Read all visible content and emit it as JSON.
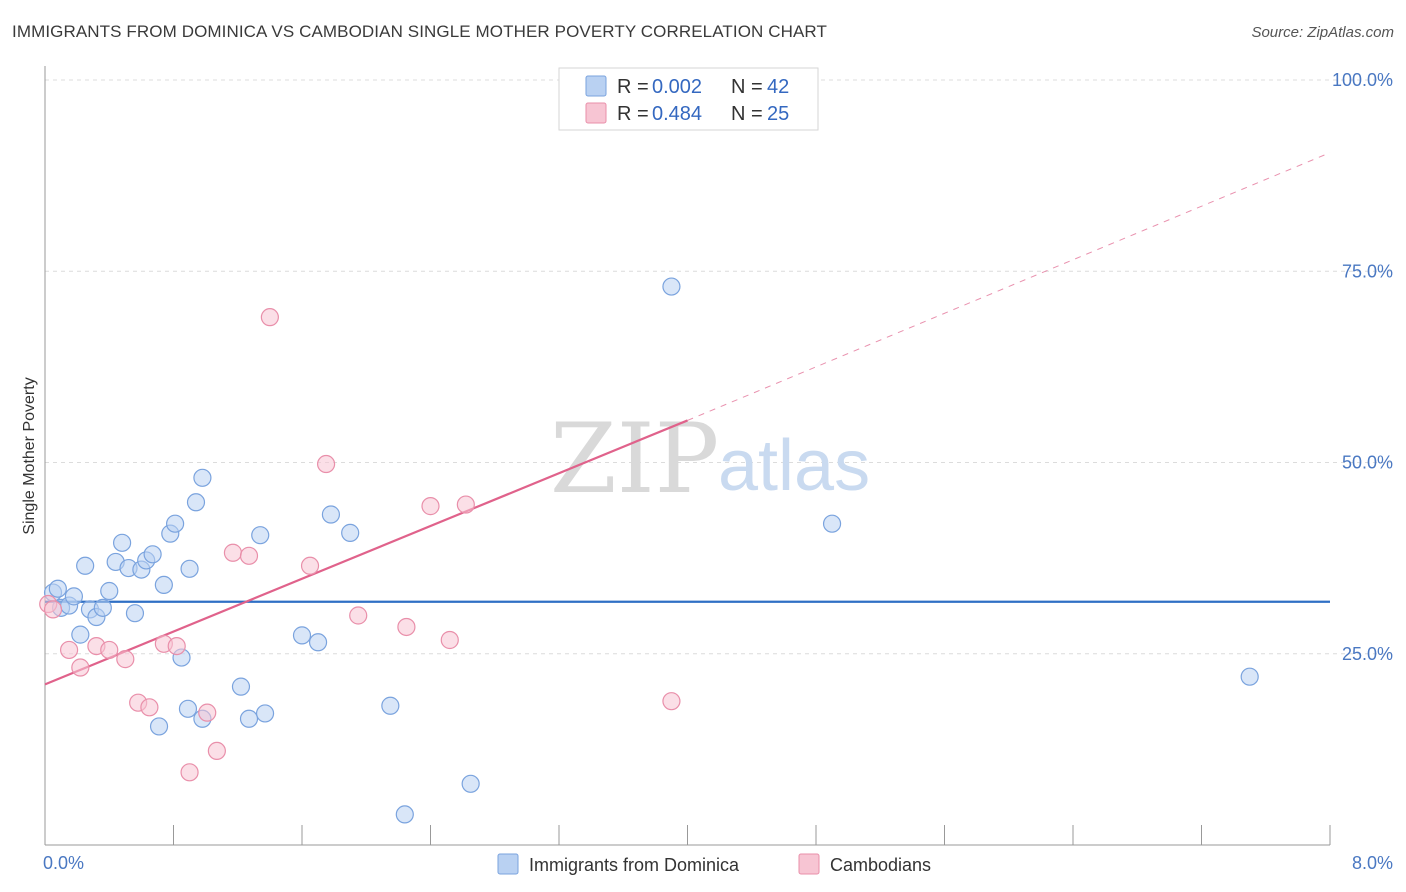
{
  "header": {
    "title": "IMMIGRANTS FROM DOMINICA VS CAMBODIAN SINGLE MOTHER POVERTY CORRELATION CHART",
    "source": "Source: ZipAtlas.com"
  },
  "watermark": {
    "zip": "ZIP",
    "atlas": "atlas"
  },
  "colors": {
    "dominica_fill": "#b9d1f2",
    "dominica_stroke": "#7aa3de",
    "dominica_line": "#2f6fc4",
    "cambodian_fill": "#f7c5d3",
    "cambodian_stroke": "#e98faa",
    "cambodian_line": "#e0628b",
    "grid": "#dcdcdc",
    "tick": "#4a78c2"
  },
  "legend_top": [
    {
      "r_label": "R = ",
      "r_value": "0.002",
      "n_label": "N = ",
      "n_value": "42",
      "series": "dominica"
    },
    {
      "r_label": "R = ",
      "r_value": "0.484",
      "n_label": "N = ",
      "n_value": "25",
      "series": "cambodian"
    }
  ],
  "chart_data": {
    "type": "scatter",
    "title": "IMMIGRANTS FROM DOMINICA VS CAMBODIAN SINGLE MOTHER POVERTY CORRELATION CHART",
    "xlabel": "",
    "ylabel": "Single Mother Poverty",
    "xlim": [
      0,
      8
    ],
    "ylim": [
      0,
      100
    ],
    "x_tick_labels": [
      "0.0%",
      "8.0%"
    ],
    "y_ticks": [
      25,
      50,
      75,
      100
    ],
    "y_tick_labels": [
      "25.0%",
      "50.0%",
      "75.0%",
      "100.0%"
    ],
    "grid": true,
    "legend_position": "bottom",
    "series": [
      {
        "name": "Immigrants from Dominica",
        "key": "dominica",
        "trend": {
          "x": [
            0,
            8
          ],
          "y": [
            31.8,
            31.8
          ],
          "dashed_extension": false
        },
        "points": [
          [
            0.05,
            33.0
          ],
          [
            0.08,
            33.5
          ],
          [
            0.1,
            31.0
          ],
          [
            0.15,
            31.3
          ],
          [
            0.18,
            32.5
          ],
          [
            0.22,
            27.5
          ],
          [
            0.25,
            36.5
          ],
          [
            0.28,
            30.8
          ],
          [
            0.32,
            29.8
          ],
          [
            0.36,
            31.0
          ],
          [
            0.4,
            33.2
          ],
          [
            0.44,
            37.0
          ],
          [
            0.48,
            39.5
          ],
          [
            0.52,
            36.2
          ],
          [
            0.56,
            30.3
          ],
          [
            0.6,
            36.0
          ],
          [
            0.63,
            37.2
          ],
          [
            0.67,
            38.0
          ],
          [
            0.74,
            34.0
          ],
          [
            0.78,
            40.7
          ],
          [
            0.81,
            42.0
          ],
          [
            0.85,
            24.5
          ],
          [
            0.9,
            36.1
          ],
          [
            0.94,
            44.8
          ],
          [
            0.98,
            48.0
          ],
          [
            0.71,
            15.5
          ],
          [
            0.89,
            17.8
          ],
          [
            0.98,
            16.5
          ],
          [
            1.22,
            20.7
          ],
          [
            1.27,
            16.5
          ],
          [
            1.34,
            40.5
          ],
          [
            1.37,
            17.2
          ],
          [
            1.6,
            27.4
          ],
          [
            1.7,
            26.5
          ],
          [
            1.78,
            43.2
          ],
          [
            1.9,
            40.8
          ],
          [
            2.15,
            18.2
          ],
          [
            2.24,
            4.0
          ],
          [
            2.65,
            8.0
          ],
          [
            3.9,
            73.0
          ],
          [
            4.9,
            42.0
          ],
          [
            7.5,
            22.0
          ]
        ]
      },
      {
        "name": "Cambodians",
        "key": "cambodian",
        "trend": {
          "x": [
            0,
            4.0
          ],
          "y": [
            21.0,
            55.5
          ],
          "extension_x": [
            4.0,
            8
          ],
          "extension_y": [
            55.5,
            90.5
          ],
          "dashed_extension": true
        },
        "points": [
          [
            0.02,
            31.5
          ],
          [
            0.05,
            30.8
          ],
          [
            0.15,
            25.5
          ],
          [
            0.22,
            23.2
          ],
          [
            0.32,
            26.0
          ],
          [
            0.4,
            25.5
          ],
          [
            0.5,
            24.3
          ],
          [
            0.58,
            18.6
          ],
          [
            0.65,
            18.0
          ],
          [
            0.74,
            26.3
          ],
          [
            0.82,
            26.0
          ],
          [
            0.9,
            9.5
          ],
          [
            1.01,
            17.3
          ],
          [
            1.07,
            12.3
          ],
          [
            1.17,
            38.2
          ],
          [
            1.27,
            37.8
          ],
          [
            1.4,
            69.0
          ],
          [
            1.65,
            36.5
          ],
          [
            1.75,
            49.8
          ],
          [
            1.95,
            30.0
          ],
          [
            2.25,
            28.5
          ],
          [
            2.4,
            44.3
          ],
          [
            2.52,
            26.8
          ],
          [
            2.62,
            44.5
          ],
          [
            3.9,
            18.8
          ]
        ]
      }
    ]
  }
}
